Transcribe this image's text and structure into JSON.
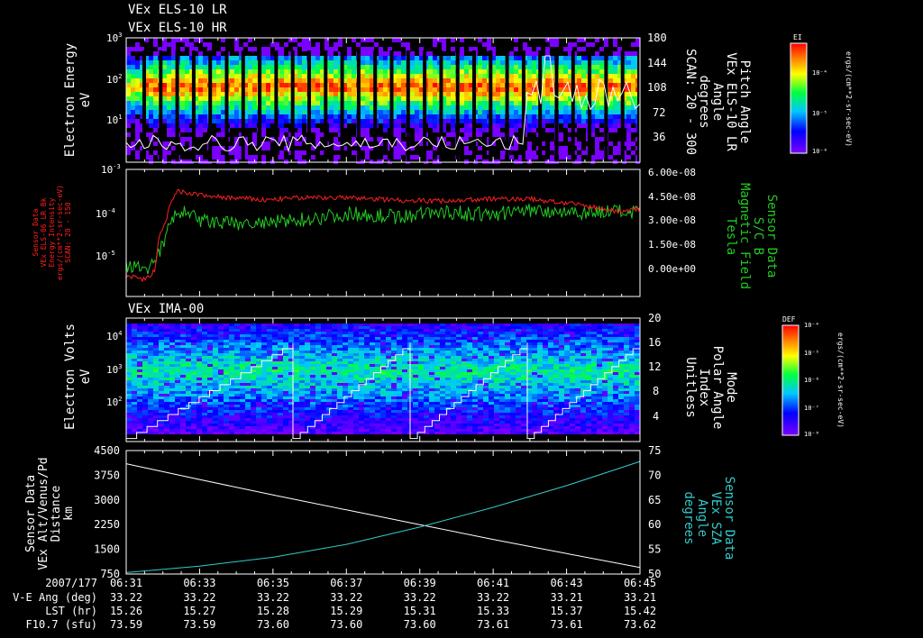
{
  "panels": {
    "els": {
      "titles": [
        "VEx ELS-10 LR",
        "VEx ELS-10 HR"
      ],
      "left_label": [
        "Electron Energy",
        "eV"
      ],
      "right_label": [
        "Pitch Angle",
        "VEx ELS-10 LR",
        "Angle",
        "degrees",
        "SCAN: 20 - 300"
      ],
      "colorbar": {
        "title": "EI",
        "unit": "ergs/(cm**2-sr-sec-eV)",
        "ticks": [
          "10⁻⁴",
          "10⁻⁵",
          "10⁻⁶"
        ]
      }
    },
    "sensor": {
      "left_label": [
        "Sensor Data",
        "VEx ELS-06 LR Bk",
        "Energy Intensity",
        "ergs/(cm**2-sr-sec-eV)",
        "SCAN: 20 - 150"
      ],
      "right_label": [
        "Sensor Data",
        "S/C B",
        "Magnetic Field",
        "Tesla"
      ]
    },
    "ima": {
      "title": "VEx IMA-00",
      "left_label": [
        "Electron Volts",
        "eV"
      ],
      "right_label": [
        "Mode",
        "Polar Angle",
        "Index",
        "Unitless"
      ],
      "colorbar": {
        "title": "DEF",
        "unit": "ergs/(cm**2-sr-sec-eV)",
        "ticks": [
          "10⁻⁴",
          "10⁻⁵",
          "10⁻⁶",
          "10⁻⁷",
          "10⁻⁸"
        ]
      }
    },
    "orbit": {
      "left_label": [
        "Sensor Data",
        "VEx Alt/Venus/Pd",
        "Distance",
        "km"
      ],
      "right_label": [
        "Sensor Data",
        "VEx SZA",
        "Angle",
        "degrees"
      ]
    }
  },
  "footer": {
    "row_labels": [
      "2007/177",
      "V-E Ang (deg)",
      "LST (hr)",
      "F10.7 (sfu)"
    ],
    "times": [
      "06:31",
      "06:33",
      "06:35",
      "06:37",
      "06:39",
      "06:41",
      "06:43",
      "06:45"
    ],
    "ve_ang": [
      "33.22",
      "33.22",
      "33.22",
      "33.22",
      "33.22",
      "33.22",
      "33.21",
      "33.21"
    ],
    "lst": [
      "15.26",
      "15.27",
      "15.28",
      "15.29",
      "15.31",
      "15.33",
      "15.37",
      "15.42"
    ],
    "f107": [
      "73.59",
      "73.59",
      "73.60",
      "73.60",
      "73.60",
      "73.61",
      "73.61",
      "73.62"
    ]
  },
  "colors": {
    "intensity": "#ff2020",
    "magnetic": "#22cc22",
    "altitude": "#ffffff",
    "sza": "#33cccc",
    "intensity_label": "#ff2020",
    "magnetic_label": "#22cc22",
    "sza_label": "#33cccc"
  },
  "chart_data": [
    {
      "type": "heatmap",
      "title": "VEx ELS-10 LR / VEx ELS-10 HR",
      "xlabel": "",
      "ylabel": "Electron Energy eV",
      "xlim": [
        6.5167,
        6.75
      ],
      "y_scale": "log",
      "ylim": [
        1,
        1000
      ],
      "y_ticks": [
        "10⁰",
        "10¹",
        "10²",
        "10³"
      ],
      "y2label": "Pitch Angle",
      "y2lim": [
        0,
        180
      ],
      "y2_ticks": [
        36,
        72,
        108,
        144,
        180
      ],
      "peak_energy_eV": 80
    },
    {
      "type": "line",
      "title": "",
      "xlabel": "",
      "ylabel": "Sensor Data Energy Intensity",
      "y_scale": "log",
      "ylim": [
        1e-06,
        0.001
      ],
      "y_ticks": [
        "10⁻⁵",
        "10⁻⁴",
        "10⁻³"
      ],
      "y2label": "Sensor Data S/C B Magnetic Field Tesla",
      "y2lim": [
        -1.5e-08,
        6e-08
      ],
      "y2_ticks": [
        "0.00e+00",
        "1.50e-08",
        "3.00e-08",
        "4.50e-08",
        "6.00e-08"
      ],
      "series": [
        {
          "name": "Energy Intensity",
          "axis": "left",
          "x": [
            6.517,
            6.525,
            6.53,
            6.535,
            6.54,
            6.55,
            6.56,
            6.58,
            6.6,
            6.62,
            6.64,
            6.66,
            6.68,
            6.7,
            6.72,
            6.74,
            6.75
          ],
          "values": [
            3e-06,
            2.5e-06,
            4e-06,
            6e-05,
            0.0003,
            0.00025,
            0.00022,
            0.00019,
            0.00022,
            0.00021,
            0.00019,
            0.00018,
            0.0002,
            0.0002,
            0.00015,
            0.0001,
            0.00012
          ]
        },
        {
          "name": "Magnetic Field",
          "axis": "right",
          "x": [
            6.517,
            6.525,
            6.53,
            6.535,
            6.54,
            6.55,
            6.56,
            6.58,
            6.6,
            6.62,
            6.64,
            6.66,
            6.68,
            6.7,
            6.72,
            6.74,
            6.75
          ],
          "values": [
            2e-09,
            2e-09,
            4e-09,
            2.2e-08,
            3.6e-08,
            3e-08,
            2.8e-08,
            2.8e-08,
            3.1e-08,
            3.4e-08,
            3.2e-08,
            3.5e-08,
            3.3e-08,
            3.6e-08,
            3.5e-08,
            3.5e-08,
            3.4e-08
          ]
        }
      ]
    },
    {
      "type": "heatmap",
      "title": "VEx IMA-00",
      "xlabel": "",
      "ylabel": "Electron Volts eV",
      "y_scale": "log",
      "ylim": [
        10,
        30000
      ],
      "y_ticks": [
        "10²",
        "10³",
        "10⁴"
      ],
      "y2label": "Mode Polar Angle Index Unitless",
      "y2lim": [
        0,
        20
      ],
      "y2_ticks": [
        4,
        8,
        12,
        16,
        20
      ],
      "peak_energy_eV": 1000
    },
    {
      "type": "line",
      "title": "",
      "x": [
        "06:31",
        "06:33",
        "06:35",
        "06:37",
        "06:39",
        "06:41",
        "06:43",
        "06:45"
      ],
      "xlabel": "",
      "ylabel": "Distance km",
      "ylim": [
        750,
        4500
      ],
      "y_ticks": [
        750,
        1500,
        2250,
        3000,
        3750,
        4500
      ],
      "y2label": "SZA Angle degrees",
      "y2lim": [
        50,
        75
      ],
      "y2_ticks": [
        50,
        55,
        60,
        65,
        70,
        75
      ],
      "series": [
        {
          "name": "VEx Alt/Venus/Pd",
          "axis": "left",
          "values": [
            4100,
            3620,
            3150,
            2700,
            2250,
            1800,
            1370,
            950
          ]
        },
        {
          "name": "VEx SZA",
          "axis": "right",
          "values": [
            50.3,
            51.6,
            53.4,
            56.0,
            59.5,
            63.5,
            67.9,
            72.8
          ]
        }
      ]
    }
  ]
}
